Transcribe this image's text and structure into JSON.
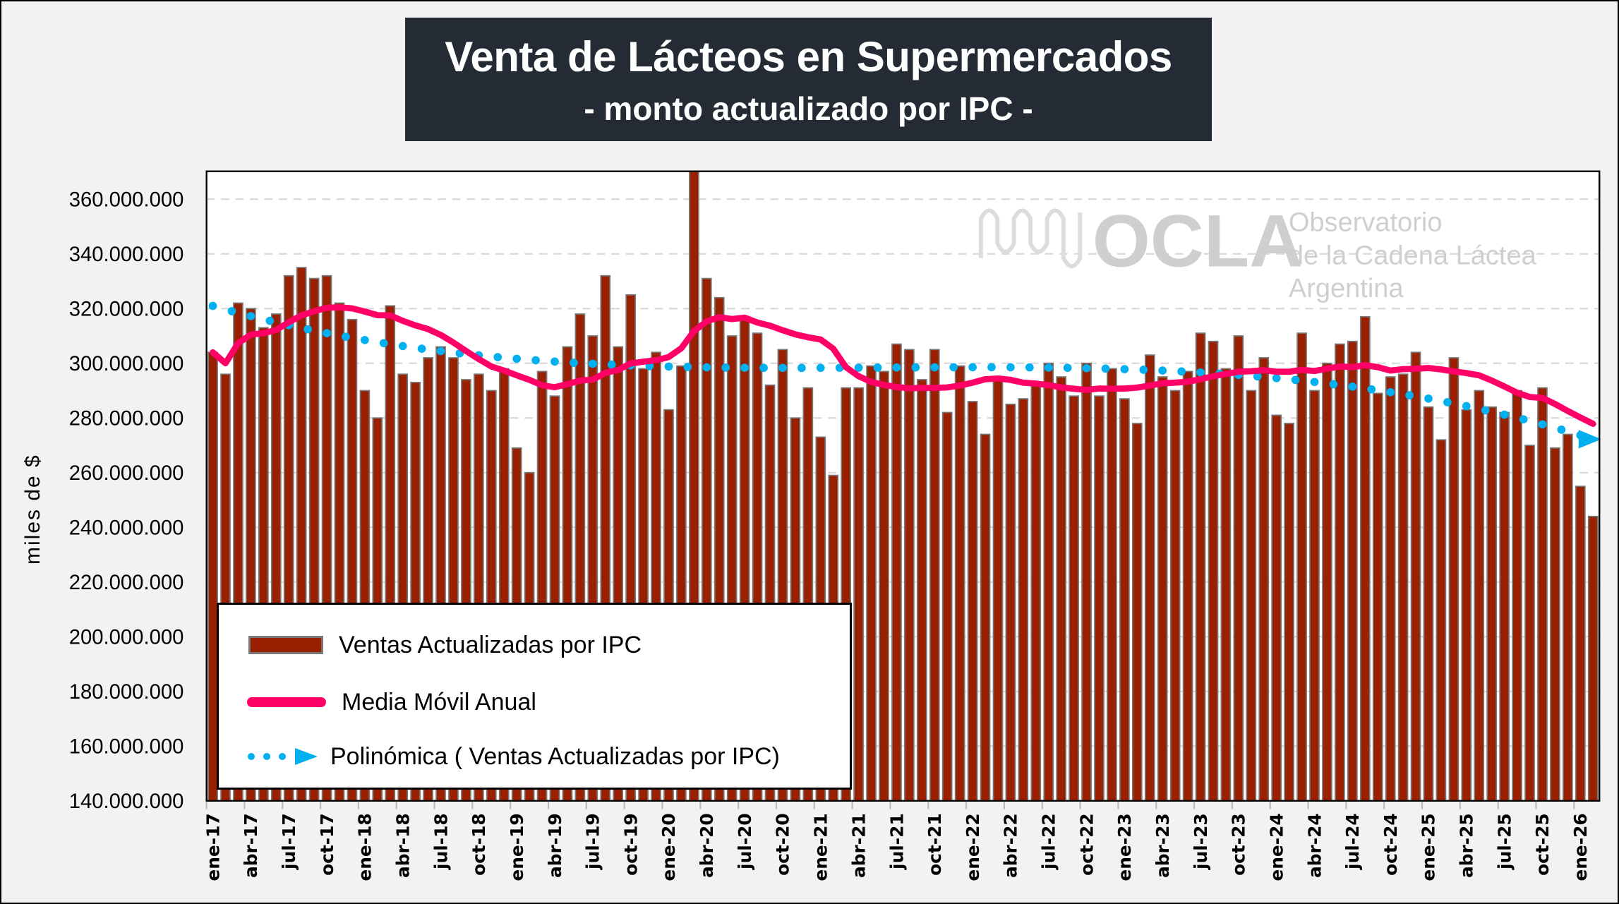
{
  "header": {
    "title": "Venta de Lácteos en Supermercados",
    "subtitle": "- monto actualizado por IPC -"
  },
  "watermark": {
    "logo_text": "OCLA",
    "line1": "Observatorio",
    "line2": "de la Cadena Láctea",
    "line3": "Argentina"
  },
  "legend": {
    "items": [
      {
        "label": "Ventas Actualizadas por IPC",
        "icon": "bar-swatch"
      },
      {
        "label": "Media Móvil Anual",
        "icon": "line-swatch"
      },
      {
        "label": "Polinómica ( Ventas Actualizadas por IPC)",
        "icon": "dotted-arrow-swatch"
      }
    ]
  },
  "colors": {
    "bar": "#992000",
    "bar_outline": "#777777",
    "moving_average": "#ff0066",
    "polynomial": "#00b0f0",
    "title_bg": "#252b35",
    "grid": "#d9d9d9"
  },
  "chart_data": {
    "type": "bar",
    "title": "Venta de Lácteos en Supermercados",
    "subtitle": "- monto actualizado por IPC -",
    "xlabel": "",
    "ylabel": "miles de $",
    "ylim": [
      140000000,
      370000000
    ],
    "yticks": [
      140000000,
      160000000,
      180000000,
      200000000,
      220000000,
      240000000,
      260000000,
      280000000,
      300000000,
      320000000,
      340000000,
      360000000
    ],
    "ytick_labels": [
      "140.000.000",
      "160.000.000",
      "180.000.000",
      "200.000.000",
      "220.000.000",
      "240.000.000",
      "260.000.000",
      "280.000.000",
      "300.000.000",
      "320.000.000",
      "340.000.000",
      "360.000.000"
    ],
    "grid": "horizontal dashed",
    "legend_position": "bottom-left",
    "xtick_labels": [
      "ene-17",
      "abr-17",
      "jul-17",
      "oct-17",
      "ene-18",
      "abr-18",
      "jul-18",
      "oct-18",
      "ene-19",
      "abr-19",
      "jul-19",
      "oct-19",
      "ene-20",
      "abr-20",
      "jul-20",
      "oct-20",
      "ene-21",
      "abr-21",
      "jul-21",
      "oct-21",
      "ene-22",
      "abr-22",
      "jul-22",
      "oct-22",
      "ene-23",
      "abr-23",
      "jul-23",
      "oct-23",
      "ene-24",
      "abr-24",
      "jul-24",
      "oct-24",
      "ene-25",
      "abr-25",
      "jul-25",
      "oct-25",
      "ene-26"
    ],
    "xtick_every_months": 3,
    "start_month": "ene-17",
    "end_month": "feb-26",
    "series": [
      {
        "name": "Ventas Actualizadas por IPC",
        "kind": "bar",
        "unit": "millions of miles de $",
        "values": [
          304,
          296,
          322,
          320,
          313,
          318,
          332,
          335,
          331,
          332,
          322,
          316,
          290,
          280,
          321,
          296,
          293,
          302,
          306,
          302,
          294,
          296,
          290,
          298,
          269,
          260,
          297,
          288,
          306,
          318,
          310,
          332,
          306,
          325,
          298,
          304,
          283,
          299,
          372,
          331,
          324,
          310,
          316,
          311,
          292,
          305,
          280,
          291,
          273,
          259,
          291,
          291,
          299,
          297,
          307,
          305,
          294,
          305,
          282,
          299,
          286,
          274,
          294,
          285,
          287,
          293,
          300,
          295,
          288,
          300,
          288,
          298,
          287,
          278,
          303,
          295,
          290,
          297,
          311,
          308,
          298,
          310,
          290,
          302,
          281,
          278,
          311,
          290,
          300,
          307,
          308,
          317,
          289,
          295,
          296,
          304,
          284,
          272,
          302,
          283,
          290,
          284,
          282,
          290,
          270,
          291,
          269,
          274,
          255,
          244
        ]
      },
      {
        "name": "Media Móvil Anual",
        "kind": "line",
        "method": "12-month moving average of bar series"
      },
      {
        "name": "Polinómica ( Ventas Actualizadas por IPC)",
        "kind": "trend",
        "method": "polynomial trend of bar series, dotted with arrow"
      }
    ]
  }
}
